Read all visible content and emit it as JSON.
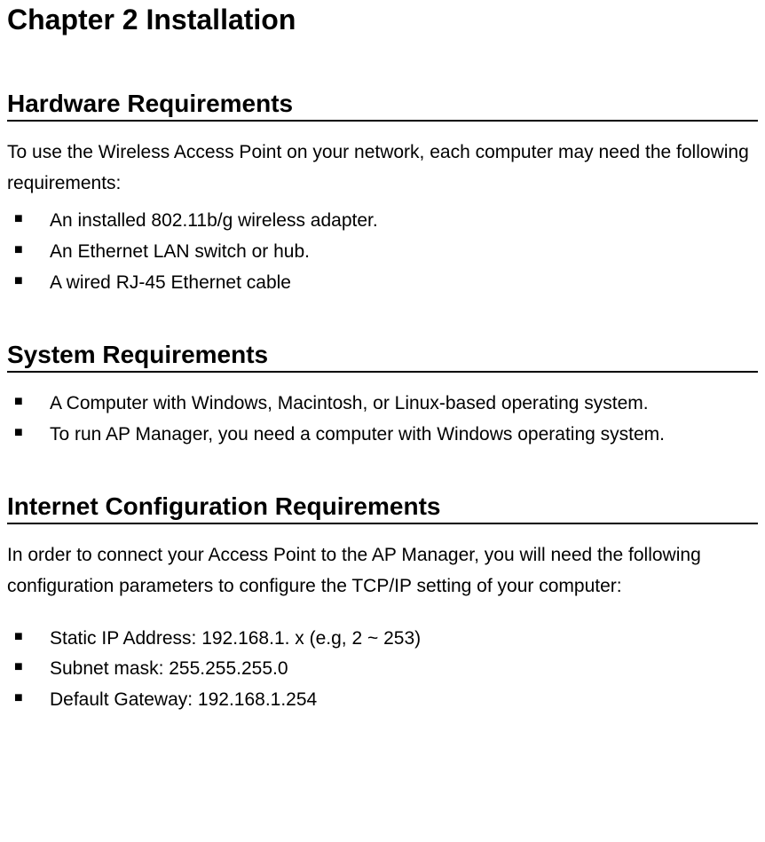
{
  "chapter": {
    "title": "Chapter 2    Installation"
  },
  "sections": {
    "hardware": {
      "heading": "Hardware Requirements",
      "intro": "To use the Wireless Access Point on your network, each computer may need the following requirements:",
      "items": [
        "An installed 802.11b/g wireless adapter.",
        "An Ethernet LAN switch or hub.",
        "A wired RJ-45 Ethernet cable"
      ]
    },
    "system": {
      "heading": "System Requirements",
      "items": [
        "A Computer with Windows, Macintosh, or Linux-based operating system.",
        "To run AP Manager, you need a computer with Windows operating system."
      ]
    },
    "internet": {
      "heading": "Internet Configuration Requirements",
      "intro": "In order to connect your Access Point to the AP Manager, you will need the following configuration parameters to configure the TCP/IP setting of your computer:",
      "items": [
        "Static IP Address: 192.168.1. x (e.g, 2 ~ 253)",
        "Subnet mask: 255.255.255.0",
        "Default Gateway: 192.168.1.254"
      ]
    }
  },
  "style": {
    "background_color": "#ffffff",
    "text_color": "#000000",
    "chapter_title_fontsize": 32,
    "heading_fontsize": 28,
    "body_fontsize": 21,
    "heading_underline_color": "#000000",
    "heading_underline_width": 2,
    "bullet_glyph": "■",
    "font_family": "Arial"
  }
}
